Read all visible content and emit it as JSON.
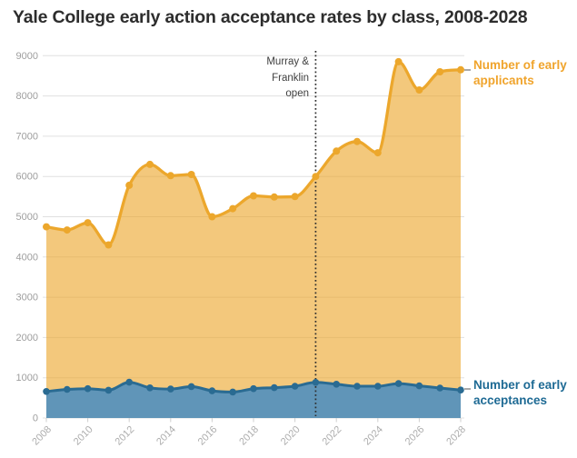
{
  "page": {
    "title": "Yale College early action acceptance rates by class, 2008-2028"
  },
  "annotation": {
    "lines": [
      "Murray &",
      "Franklin",
      "open"
    ],
    "full_text": "Murray & Franklin open",
    "at_year": 2021
  },
  "legend": {
    "applicants": {
      "line1": "Number of early",
      "line2": "applicants"
    },
    "acceptances": {
      "line1": "Number of early",
      "line2": "acceptances"
    }
  },
  "colors": {
    "applicants_line": "#eca72c",
    "applicants_fill": "#f3c87c",
    "applicants_label": "#f0a42c",
    "acceptances_line": "#2a6b92",
    "acceptances_fill": "#6095b8",
    "acceptances_label": "#1e6a94",
    "grid": "#e0e0e0",
    "tick": "#cfcfcf",
    "y_axis_text": "#9e9e9e",
    "x_axis_text": "#adadad",
    "annotation_text": "#3e3e3e",
    "dotted_line": "#2e2e2e",
    "title_text": "#2d2d2d"
  },
  "chart_data": {
    "type": "area",
    "title": "Yale College early action acceptance rates by class, 2008-2028",
    "x": [
      2008,
      2009,
      2010,
      2011,
      2012,
      2013,
      2014,
      2015,
      2016,
      2017,
      2018,
      2019,
      2020,
      2021,
      2022,
      2023,
      2024,
      2025,
      2026,
      2027,
      2028
    ],
    "series": [
      {
        "name": "Number of early applicants",
        "values": [
          4750,
          4670,
          4850,
          4300,
          5780,
          6300,
          6020,
          6050,
          5000,
          5200,
          5520,
          5490,
          5500,
          6000,
          6630,
          6870,
          6590,
          8850,
          8150,
          8600,
          8650
        ]
      },
      {
        "name": "Number of early acceptances",
        "values": [
          660,
          710,
          730,
          690,
          890,
          750,
          720,
          780,
          675,
          645,
          730,
          755,
          790,
          885,
          840,
          790,
          790,
          855,
          800,
          745,
          695
        ]
      }
    ],
    "xlabel": "",
    "ylabel": "",
    "ylim": [
      0,
      9000
    ],
    "ytick_step": 1000,
    "yticks": [
      0,
      1000,
      2000,
      3000,
      4000,
      5000,
      6000,
      7000,
      8000,
      9000
    ],
    "xticks": [
      2008,
      2010,
      2012,
      2014,
      2016,
      2018,
      2020,
      2022,
      2024,
      2026,
      2028
    ],
    "grid": "horizontal",
    "legend_position": "right-of-line-ends",
    "annotation": {
      "label": "Murray & Franklin open",
      "x": 2021
    }
  }
}
